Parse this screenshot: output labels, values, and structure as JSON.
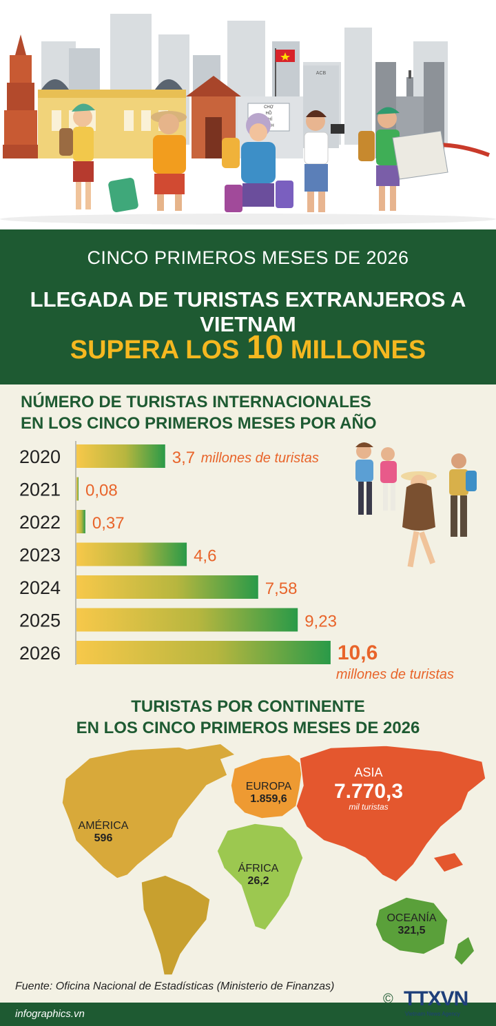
{
  "header": {
    "line1": "CINCO PRIMEROS MESES DE 2026",
    "line2": "LLEGADA DE TURISTAS EXTRANJEROS A VIETNAM",
    "line3_pre": "SUPERA LOS ",
    "line3_num": "10",
    "line3_post": " MILLONES"
  },
  "hero": {
    "sign_lines": [
      "CHỢ",
      "HỒ",
      "CHÍ",
      "MINH"
    ],
    "building_sign": "ACB"
  },
  "colors": {
    "green_dark": "#1e5a32",
    "gold": "#f5b820",
    "orange": "#e8642a",
    "bar_start": "#f7c84a",
    "bar_end": "#2a9a48"
  },
  "bar_section": {
    "title_line1": "NÚMERO DE TURISTAS INTERNACIONALES",
    "title_line2": "EN LOS CINCO PRIMEROS MESES POR AÑO"
  },
  "chart_data": {
    "type": "bar",
    "orientation": "horizontal",
    "categories": [
      "2020",
      "2021",
      "2022",
      "2023",
      "2024",
      "2025",
      "2026"
    ],
    "values": [
      3.7,
      0.08,
      0.37,
      4.6,
      7.58,
      9.23,
      10.6
    ],
    "value_labels": [
      "3,7",
      "0,08",
      "0,37",
      "4,6",
      "7,58",
      "9,23",
      "10,6"
    ],
    "first_unit": "millones de turistas",
    "last_unit": "millones de turistas",
    "xlim": [
      0,
      11
    ]
  },
  "map_section": {
    "title_line1": "TURISTAS POR CONTINENTE",
    "title_line2": "EN LOS CINCO PRIMEROS MESES DE 2026",
    "continents": [
      {
        "name": "AMÉRICA",
        "value": "596",
        "color": "#d8a93a"
      },
      {
        "name": "EUROPA",
        "value": "1.859,6",
        "color": "#ee9a32"
      },
      {
        "name": "ASIA",
        "value": "7.770,3",
        "unit": "mil turistas",
        "color": "#e4572e"
      },
      {
        "name": "ÁFRICA",
        "value": "26,2",
        "color": "#9cc850"
      },
      {
        "name": "OCEANÍA",
        "value": "321,5",
        "color": "#5aa03a"
      }
    ]
  },
  "source": "Fuente: Oficina Nacional de Estadísticas (Ministerio de Finanzas)",
  "footer": {
    "site": "infographics.vn",
    "copyright": "©",
    "logo": "TTXVN",
    "logo_sub": "Vietnam News Agency"
  }
}
